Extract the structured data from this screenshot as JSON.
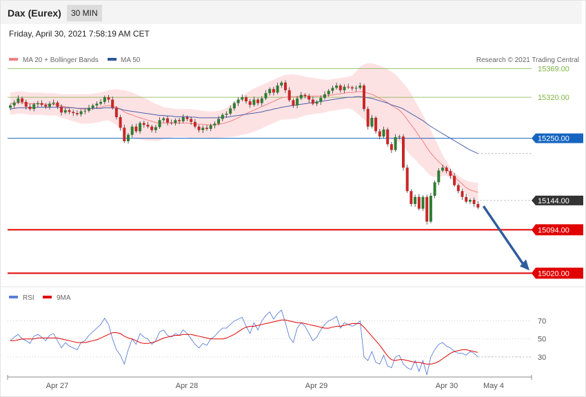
{
  "header": {
    "title": "Dax (Eurex)",
    "timeframe": "30 MIN"
  },
  "timestamp": "Friday, April 30, 2021 7:58:19 AM CET",
  "credit": "Research © 2021 Trading Central",
  "legend": {
    "price": [
      {
        "name": "MA 20 + Bollinger Bands",
        "color": "#f08080"
      },
      {
        "name": "MA 50",
        "color": "#2f5597"
      }
    ],
    "rsi": [
      {
        "name": "RSI",
        "color": "#5b7fd6"
      },
      {
        "name": "9MA",
        "color": "#e00000"
      }
    ]
  },
  "colors": {
    "up": "#2e7d32",
    "down": "#c62828",
    "band": "#fde2e4",
    "arrow": "#2f5d9c"
  },
  "chart_data": [
    {
      "type": "candlestick",
      "x_ticks": [
        "Apr 27",
        "Apr 28",
        "Apr 29",
        "Apr 30",
        "May 4"
      ],
      "ylim": [
        15004,
        15420
      ],
      "levels": [
        {
          "label": "15369.00",
          "value": 15369,
          "color": "#7cb342",
          "style": "thin"
        },
        {
          "label": "15320.00",
          "value": 15320,
          "color": "#7cb342",
          "style": "thin"
        },
        {
          "label": "15250.00",
          "value": 15250,
          "color": "#1565c0",
          "style": "tag"
        },
        {
          "label": "15144.00",
          "value": 15144,
          "color": "#333333",
          "style": "tag"
        },
        {
          "label": "15094.00",
          "value": 15094,
          "color": "#e00000",
          "style": "thick"
        },
        {
          "label": "15020.00",
          "value": 15020,
          "color": "#e00000",
          "style": "thick"
        }
      ],
      "close": [
        15306,
        15311,
        15318,
        15312,
        15304,
        15300,
        15308,
        15310,
        15307,
        15304,
        15309,
        15311,
        15304,
        15294,
        15298,
        15295,
        15293,
        15291,
        15296,
        15297,
        15302,
        15306,
        15309,
        15312,
        15320,
        15316,
        15302,
        15286,
        15268,
        15245,
        15256,
        15270,
        15262,
        15276,
        15273,
        15270,
        15264,
        15269,
        15281,
        15284,
        15277,
        15276,
        15281,
        15279,
        15286,
        15283,
        15278,
        15270,
        15264,
        15268,
        15266,
        15272,
        15275,
        15283,
        15290,
        15292,
        15301,
        15310,
        15316,
        15320,
        15313,
        15307,
        15316,
        15310,
        15318,
        15327,
        15334,
        15328,
        15340,
        15345,
        15332,
        15315,
        15306,
        15318,
        15324,
        15322,
        15316,
        15309,
        15312,
        15319,
        15325,
        15331,
        15336,
        15340,
        15332,
        15338,
        15337,
        15335,
        15336,
        15340,
        15300,
        15270,
        15285,
        15262,
        15253,
        15265,
        15240,
        15230,
        15252,
        15253,
        15200,
        15160,
        15138,
        15150,
        15130,
        15150,
        15108,
        15152,
        15175,
        15195,
        15200,
        15194,
        15186,
        15170,
        15160,
        15150,
        15142,
        15145,
        15138,
        15132
      ],
      "ma20": [
        15309,
        15310,
        15311,
        15311,
        15310,
        15309,
        15309,
        15309,
        15309,
        15308,
        15308,
        15308,
        15307,
        15305,
        15304,
        15303,
        15302,
        15301,
        15300,
        15300,
        15300,
        15301,
        15302,
        15303,
        15305,
        15306,
        15305,
        15303,
        15300,
        15295,
        15292,
        15290,
        15287,
        15285,
        15283,
        15281,
        15279,
        15277,
        15276,
        15276,
        15276,
        15276,
        15276,
        15276,
        15276,
        15276,
        15275,
        15275,
        15274,
        15274,
        15273,
        15273,
        15273,
        15274,
        15275,
        15277,
        15279,
        15282,
        15285,
        15289,
        15292,
        15295,
        15298,
        15301,
        15304,
        15307,
        15310,
        15313,
        15316,
        15319,
        15320,
        15321,
        15321,
        15321,
        15322,
        15322,
        15322,
        15322,
        15322,
        15322,
        15322,
        15323,
        15324,
        15325,
        15326,
        15327,
        15328,
        15328,
        15329,
        15330,
        15329,
        15327,
        15325,
        15322,
        15318,
        15315,
        15311,
        15306,
        15302,
        15298,
        15291,
        15282,
        15273,
        15264,
        15254,
        15245,
        15234,
        15225,
        15217,
        15210,
        15204,
        15198,
        15191,
        15184,
        15178,
        15172,
        15166,
        15162,
        15160,
        15158
      ],
      "ma50": [
        15300,
        15301,
        15302,
        15302,
        15302,
        15302,
        15302,
        15303,
        15303,
        15303,
        15303,
        15303,
        15303,
        15303,
        15302,
        15302,
        15302,
        15301,
        15301,
        15301,
        15301,
        15301,
        15301,
        15301,
        15302,
        15302,
        15302,
        15301,
        15300,
        15298,
        15297,
        15296,
        15295,
        15294,
        15293,
        15292,
        15291,
        15290,
        15289,
        15289,
        15288,
        15288,
        15287,
        15287,
        15287,
        15287,
        15286,
        15286,
        15285,
        15285,
        15285,
        15285,
        15285,
        15285,
        15286,
        15286,
        15287,
        15288,
        15289,
        15290,
        15291,
        15292,
        15293,
        15294,
        15295,
        15297,
        15298,
        15300,
        15301,
        15303,
        15304,
        15305,
        15306,
        15307,
        15308,
        15309,
        15310,
        15311,
        15312,
        15313,
        15314,
        15315,
        15316,
        15317,
        15318,
        15319,
        15320,
        15320,
        15321,
        15321,
        15320,
        15319,
        15318,
        15316,
        15314,
        15312,
        15310,
        15307,
        15305,
        15303,
        15300,
        15296,
        15292,
        15288,
        15284,
        15280,
        15275,
        15270,
        15266,
        15262,
        15258,
        15254,
        15250,
        15246,
        15242,
        15238,
        15234,
        15230,
        15227,
        15224
      ],
      "band_up": [
        15328,
        15329,
        15330,
        15330,
        15329,
        15328,
        15328,
        15328,
        15328,
        15327,
        15327,
        15327,
        15326,
        15325,
        15325,
        15325,
        15325,
        15325,
        15325,
        15325,
        15325,
        15326,
        15327,
        15328,
        15330,
        15332,
        15333,
        15334,
        15333,
        15332,
        15330,
        15328,
        15325,
        15322,
        15319,
        15316,
        15312,
        15309,
        15306,
        15303,
        15302,
        15301,
        15300,
        15300,
        15300,
        15300,
        15300,
        15299,
        15298,
        15297,
        15296,
        15296,
        15296,
        15297,
        15299,
        15302,
        15306,
        15311,
        15316,
        15322,
        15327,
        15331,
        15335,
        15338,
        15341,
        15344,
        15347,
        15350,
        15353,
        15356,
        15358,
        15359,
        15359,
        15358,
        15357,
        15355,
        15354,
        15353,
        15352,
        15351,
        15350,
        15350,
        15351,
        15352,
        15353,
        15354,
        15355,
        15357,
        15364,
        15372,
        15376,
        15378,
        15378,
        15376,
        15374,
        15371,
        15368,
        15364,
        15359,
        15352,
        15344,
        15336,
        15326,
        15314,
        15302,
        15290,
        15276,
        15264,
        15250,
        15236,
        15222,
        15210,
        15200,
        15192,
        15186,
        15181,
        15178,
        15176,
        15175,
        15174
      ],
      "band_lo": [
        15290,
        15291,
        15292,
        15292,
        15291,
        15290,
        15290,
        15290,
        15290,
        15289,
        15289,
        15289,
        15288,
        15285,
        15283,
        15281,
        15279,
        15277,
        15275,
        15275,
        15275,
        15276,
        15277,
        15278,
        15280,
        15280,
        15277,
        15272,
        15267,
        15258,
        15254,
        15252,
        15249,
        15248,
        15247,
        15246,
        15246,
        15245,
        15246,
        15249,
        15250,
        15251,
        15252,
        15252,
        15252,
        15252,
        15250,
        15251,
        15250,
        15251,
        15250,
        15250,
        15250,
        15251,
        15251,
        15252,
        15252,
        15253,
        15254,
        15256,
        15257,
        15259,
        15261,
        15264,
        15267,
        15270,
        15273,
        15276,
        15279,
        15282,
        15282,
        15283,
        15283,
        15284,
        15287,
        15289,
        15290,
        15291,
        15292,
        15293,
        15294,
        15296,
        15297,
        15298,
        15299,
        15300,
        15301,
        15299,
        15294,
        15288,
        15282,
        15276,
        15272,
        15268,
        15262,
        15259,
        15254,
        15248,
        15245,
        15244,
        15238,
        15228,
        15220,
        15214,
        15206,
        15200,
        15192,
        15186,
        15184,
        15184,
        15186,
        15186,
        15182,
        15176,
        15170,
        15163,
        15154,
        15148,
        15145,
        15142
      ]
    },
    {
      "type": "line",
      "name": "RSI panel",
      "y_ticks": [
        "70",
        "50",
        "30"
      ],
      "ylim": [
        10,
        85
      ],
      "rsi": [
        48,
        52,
        55,
        50,
        48,
        45,
        53,
        55,
        52,
        48,
        54,
        56,
        48,
        40,
        46,
        42,
        40,
        38,
        46,
        48,
        54,
        58,
        62,
        66,
        73,
        66,
        50,
        38,
        32,
        22,
        38,
        50,
        44,
        56,
        52,
        50,
        44,
        48,
        58,
        60,
        54,
        52,
        56,
        54,
        60,
        56,
        50,
        44,
        40,
        45,
        43,
        50,
        53,
        58,
        62,
        62,
        66,
        70,
        72,
        74,
        64,
        56,
        68,
        60,
        70,
        76,
        80,
        72,
        78,
        82,
        68,
        52,
        46,
        62,
        68,
        64,
        56,
        48,
        52,
        60,
        66,
        70,
        72,
        75,
        62,
        68,
        66,
        64,
        66,
        70,
        30,
        26,
        36,
        24,
        22,
        32,
        20,
        18,
        30,
        32,
        22,
        18,
        16,
        26,
        14,
        26,
        10,
        30,
        38,
        44,
        46,
        42,
        40,
        36,
        34,
        34,
        32,
        36,
        34,
        30
      ],
      "ma9": [
        48,
        48,
        49,
        50,
        50,
        50,
        50,
        51,
        51,
        51,
        51,
        51,
        51,
        50,
        49,
        48,
        47,
        46,
        46,
        46,
        47,
        48,
        49,
        51,
        53,
        55,
        57,
        57,
        56,
        53,
        51,
        50,
        48,
        46,
        45,
        45,
        46,
        47,
        49,
        51,
        52,
        53,
        54,
        54,
        55,
        55,
        55,
        54,
        53,
        52,
        51,
        50,
        50,
        50,
        50,
        51,
        53,
        55,
        58,
        61,
        63,
        64,
        64,
        65,
        66,
        67,
        68,
        69,
        70,
        71,
        71,
        70,
        69,
        68,
        68,
        67,
        66,
        65,
        64,
        63,
        62,
        62,
        63,
        64,
        64,
        65,
        66,
        67,
        67,
        67,
        63,
        58,
        53,
        48,
        43,
        37,
        31,
        27,
        26,
        27,
        27,
        26,
        25,
        24,
        24,
        23,
        22,
        22,
        23,
        25,
        28,
        31,
        34,
        36,
        37,
        38,
        38,
        37,
        36,
        35
      ]
    }
  ]
}
